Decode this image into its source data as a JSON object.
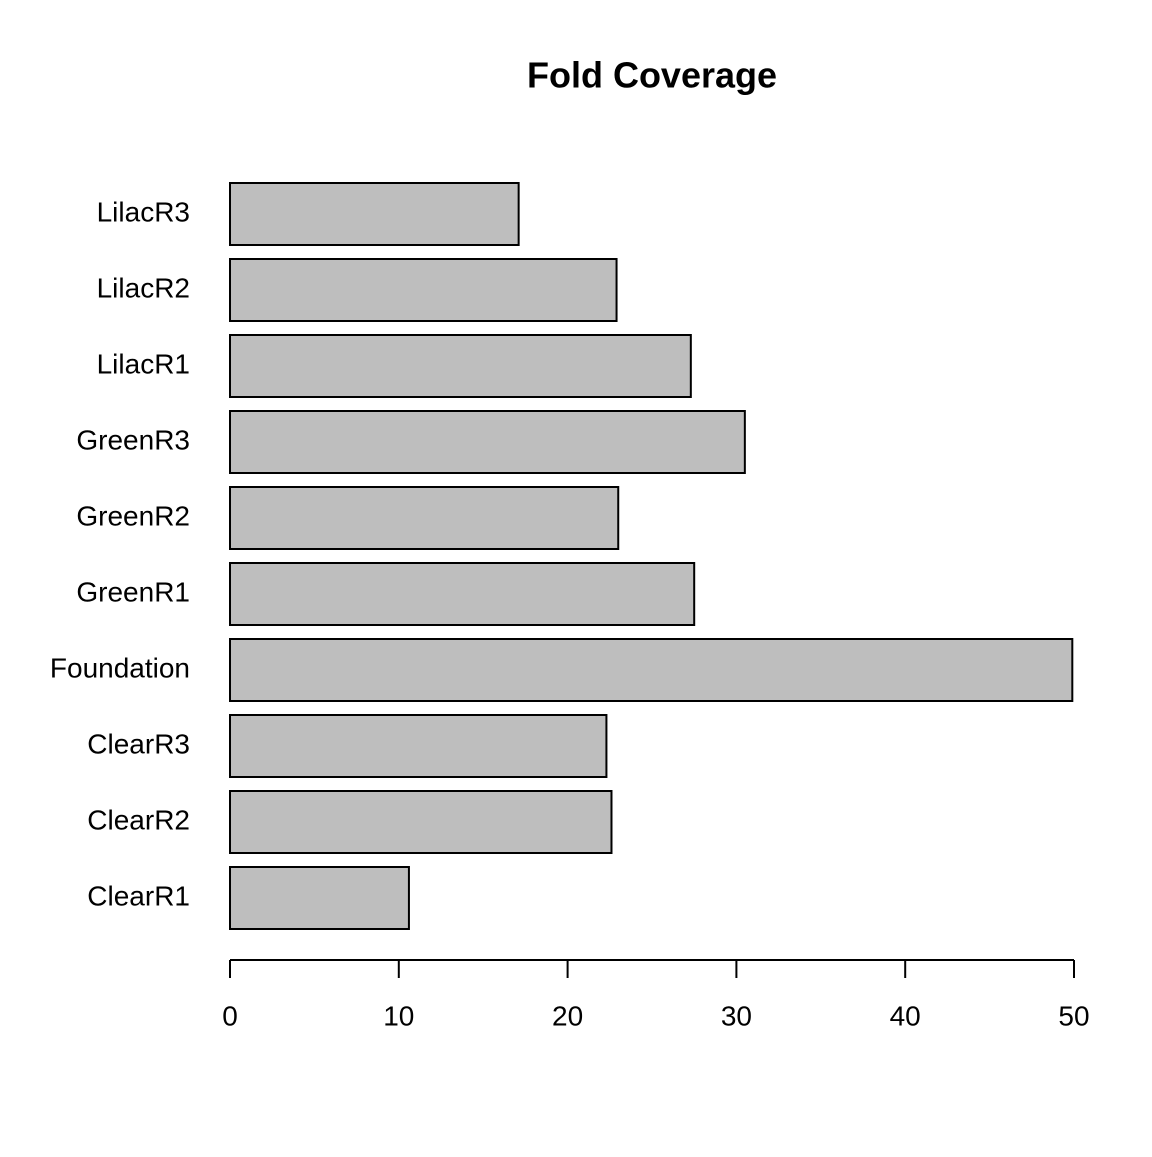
{
  "chart_data": {
    "type": "bar",
    "orientation": "horizontal",
    "title": "Fold Coverage",
    "categories": [
      "ClearR1",
      "ClearR2",
      "ClearR3",
      "Foundation",
      "GreenR1",
      "GreenR2",
      "GreenR3",
      "LilacR1",
      "LilacR2",
      "LilacR3"
    ],
    "values": [
      10.6,
      22.6,
      22.3,
      49.9,
      27.5,
      23.0,
      30.5,
      27.3,
      22.9,
      17.1
    ],
    "color": "#bebebe",
    "xlim": [
      0,
      50
    ],
    "xticks": [
      0,
      10,
      20,
      30,
      40,
      50
    ]
  }
}
